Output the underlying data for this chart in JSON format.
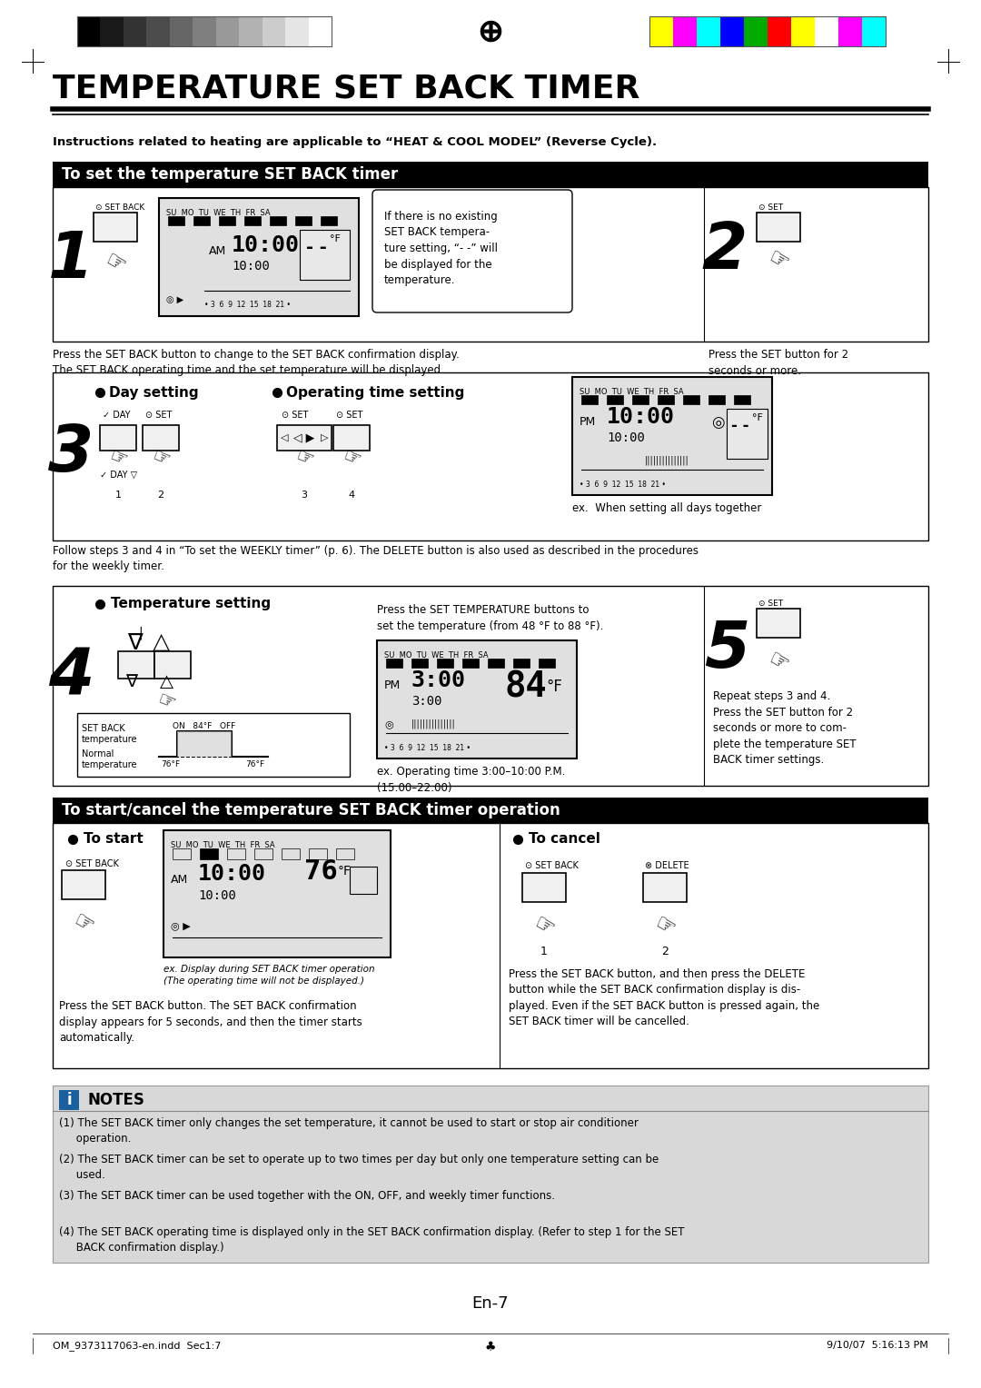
{
  "title": "TEMPERATURE SET BACK TIMER",
  "subtitle": "Instructions related to heating are applicable to “HEAT & COOL MODEL” (Reverse Cycle).",
  "section1_header": "To set the temperature SET BACK timer",
  "section2_header": "To start/cancel the temperature SET BACK timer operation",
  "notes_header": "NOTES",
  "notes": [
    "(1) The SET BACK timer only changes the set temperature, it cannot be used to start or stop air conditioner\n     operation.",
    "(2) The SET BACK timer can be set to operate up to two times per day but only one temperature setting can be\n     used.",
    "(3) The SET BACK timer can be used together with the ON, OFF, and weekly timer functions.",
    "(4) The SET BACK operating time is displayed only in the SET BACK confirmation display. (Refer to step 1 for the SET\n     BACK confirmation display.)"
  ],
  "footer_left": "OM_9373117063-en.indd  Sec1:7",
  "footer_right": "9/10/07  5:16:13 PM",
  "page_number": "En-7",
  "bg_color": "#ffffff",
  "header_bar_colors_left": [
    "#000000",
    "#191919",
    "#333333",
    "#4c4c4c",
    "#666666",
    "#7f7f7f",
    "#999999",
    "#b2b2b2",
    "#cccccc",
    "#e5e5e5",
    "#ffffff"
  ],
  "header_bar_colors_right": [
    "#ffff00",
    "#ff00ff",
    "#00ffff",
    "#0000ff",
    "#00aa00",
    "#ff0000",
    "#ffff00",
    "#ffffff",
    "#ff00ff",
    "#00ffff"
  ],
  "step1_text": "If there is no existing\nSET BACK tempera-\nture setting, “- -” will\nbe displayed for the\ntemperature.",
  "step1_bottom_left": "Press the SET BACK button to change to the SET BACK confirmation display.\nThe SET BACK operating time and the set temperature will be displayed.",
  "step1_bottom_right": "Press the SET button for 2\nseconds or more.",
  "step3_header": "Day setting",
  "step3_op_header": "Operating time setting",
  "step3_bottom": "Follow steps 3 and 4 in “To set the WEEKLY timer” (p. 6). The DELETE button is also used as described in the procedures\nfor the weekly timer.",
  "step4_header": "Temperature setting",
  "step4_desc": "Press the SET TEMPERATURE buttons to\nset the temperature (from 48 °F to 88 °F).",
  "step4_ex": "ex. Operating time 3:00–10:00 P.M.\n(15:00–22:00)",
  "step5_text": "Repeat steps 3 and 4.\nPress the SET button for 2\nseconds or more to com-\nplete the temperature SET\nBACK timer settings.",
  "step3_ex": "ex.  When setting all days together",
  "to_start_desc": "Press the SET BACK button. The SET BACK confirmation\ndisplay appears for 5 seconds, and then the timer starts\nautomatically.",
  "to_cancel_desc": "Press the SET BACK button, and then press the DELETE\nbutton while the SET BACK confirmation display is dis-\nplayed. Even if the SET BACK button is pressed again, the\nSET BACK timer will be cancelled.",
  "to_start_ex": "ex. Display during SET BACK timer operation\n(The operating time will not be displayed.)"
}
